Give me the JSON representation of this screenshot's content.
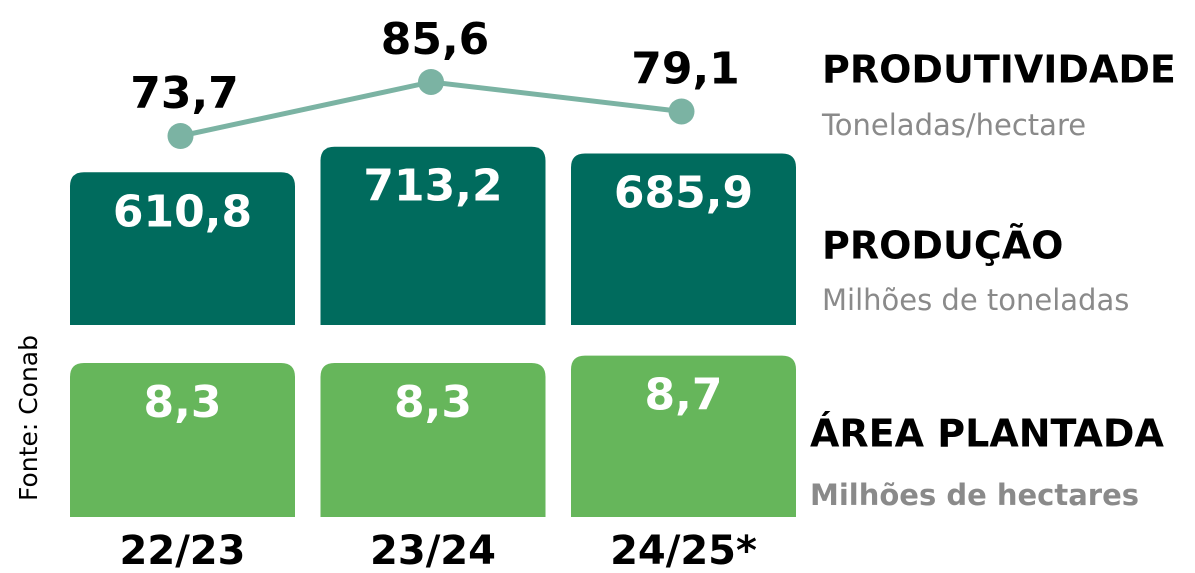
{
  "chart_data": {
    "type": "combo",
    "categories": [
      "22/23",
      "23/24",
      "24/25*"
    ],
    "series": [
      {
        "name": "PRODUTIVIDADE",
        "unit": "Toneladas/hectare",
        "type": "line",
        "color": "#7bb3a3",
        "values": [
          73.7,
          85.6,
          79.1
        ],
        "value_labels": [
          "73,7",
          "85,6",
          "79,1"
        ]
      },
      {
        "name": "PRODUÇÃO",
        "unit": "Milhões de toneladas",
        "type": "bar",
        "color": "#006b5d",
        "values": [
          610.8,
          713.2,
          685.9
        ],
        "value_labels": [
          "610,8",
          "713,2",
          "685,9"
        ]
      },
      {
        "name": "ÁREA PLANTADA",
        "unit": "Milhões de hectares",
        "type": "bar",
        "color": "#66b65b",
        "values": [
          8.3,
          8.3,
          8.7
        ],
        "value_labels": [
          "8,3",
          "8,3",
          "8,7"
        ]
      }
    ],
    "source": "Fonte: Conab"
  }
}
